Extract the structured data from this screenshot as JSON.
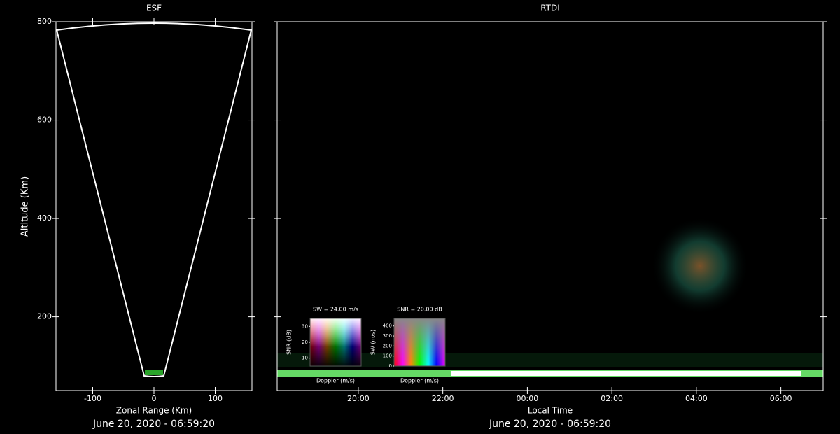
{
  "chart_data": [
    {
      "type": "fan",
      "title": "ESF",
      "x_label": "Zonal Range (Km)",
      "y_label": "Altitude (Km)",
      "footer": "June 20, 2020 - 06:59:20",
      "xlim": [
        -160,
        160
      ],
      "xticks": [
        -100,
        0,
        100
      ],
      "ylim": [
        50,
        800
      ],
      "yticks": [
        200,
        400,
        600,
        800
      ]
    },
    {
      "type": "image",
      "title": "RTDI",
      "x_label": "Local Time",
      "footer": "June 20, 2020 - 06:59:20",
      "xlim": [
        18.08,
        31.0
      ],
      "xticks": [
        {
          "value": 20,
          "label": "20:00"
        },
        {
          "value": 22,
          "label": "22:00"
        },
        {
          "value": 24,
          "label": "00:00"
        },
        {
          "value": 26,
          "label": "02:00"
        },
        {
          "value": 28,
          "label": "04:00"
        },
        {
          "value": 30,
          "label": "06:00"
        }
      ],
      "ylim": [
        50,
        800
      ],
      "keys": [
        {
          "title": "SW = 24.00 m/s",
          "x_label": "Doppler (m/s)",
          "y_label": "SNR (dB)",
          "ylim": [
            5,
            35
          ],
          "yticks": [
            10,
            20,
            30
          ]
        },
        {
          "title": "SNR = 20.00 dB",
          "x_label": "Doppler (m/s)",
          "y_label": "SW (m/s)",
          "ylim": [
            0,
            475
          ],
          "yticks": [
            0,
            100,
            200,
            300,
            400
          ]
        }
      ]
    }
  ]
}
